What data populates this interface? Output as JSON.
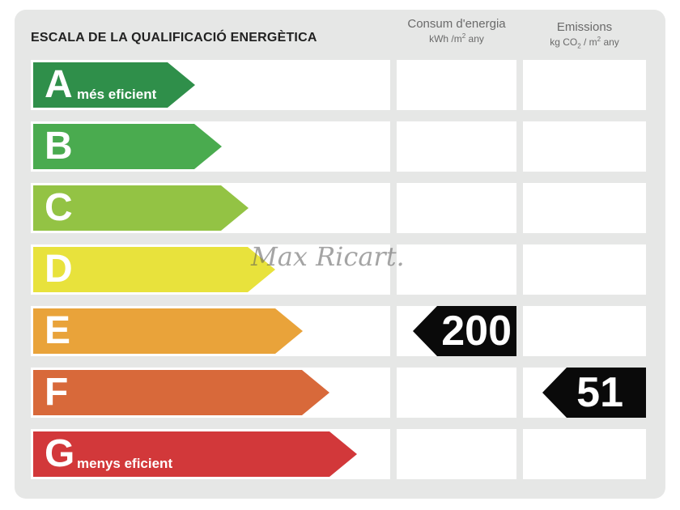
{
  "title": "ESCALA DE LA QUALIFICACIÓ ENERGÈTICA",
  "columns": {
    "consumption": {
      "label": "Consum d'energia",
      "unit_main": "kWh /m",
      "unit_sup": "2",
      "unit_tail": " any"
    },
    "emissions": {
      "label": "Emissions",
      "unit_main": "kg CO",
      "unit_sub": "2",
      "unit_mid": " / m",
      "unit_sup": "2",
      "unit_tail": "  any"
    }
  },
  "ratings": [
    {
      "letter": "A",
      "desc": "més eficient",
      "color": "#2f8f4a"
    },
    {
      "letter": "B",
      "desc": "",
      "color": "#4aab4f"
    },
    {
      "letter": "C",
      "desc": "",
      "color": "#93c344"
    },
    {
      "letter": "D",
      "desc": "",
      "color": "#e8e23c"
    },
    {
      "letter": "E",
      "desc": "",
      "color": "#e9a33a"
    },
    {
      "letter": "F",
      "desc": "",
      "color": "#d8693a"
    },
    {
      "letter": "G",
      "desc": "menys eficient",
      "color": "#d2383a"
    }
  ],
  "consumption_value": {
    "rating": "E",
    "value": "200"
  },
  "emissions_value": {
    "rating": "F",
    "value": "51"
  },
  "watermark": "Max Ricart."
}
